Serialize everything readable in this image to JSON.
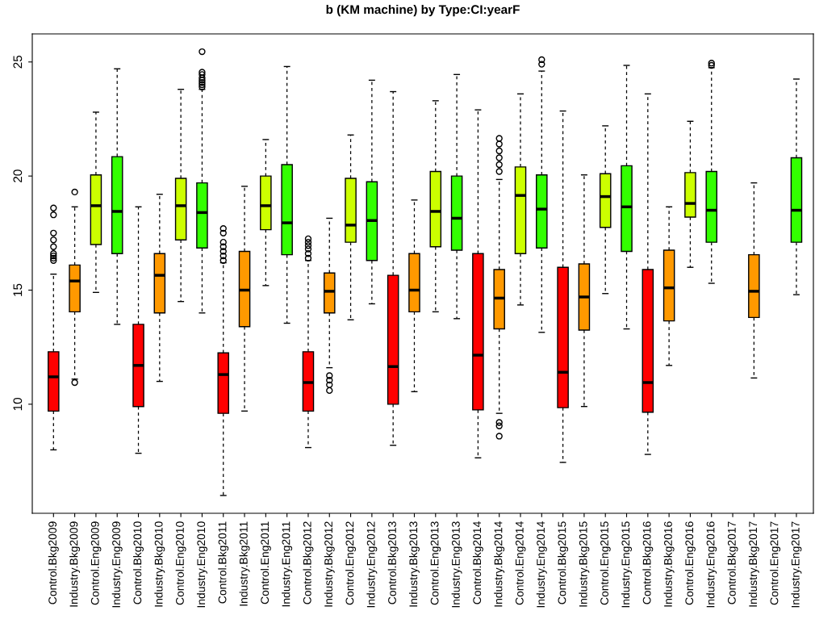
{
  "chart_data": {
    "type": "box",
    "title": "b (KM machine) by Type:CI:yearF",
    "categories": [
      "Control.Bkg2009",
      "Industry.Bkg2009",
      "Control.Eng2009",
      "Industry.Eng2009",
      "Control.Bkg2010",
      "Industry.Bkg2010",
      "Control.Eng2010",
      "Industry.Eng2010",
      "Control.Bkg2011",
      "Industry.Bkg2011",
      "Control.Eng2011",
      "Industry.Eng2011",
      "Control.Bkg2012",
      "Industry.Bkg2012",
      "Control.Eng2012",
      "Industry.Eng2012",
      "Control.Bkg2013",
      "Industry.Bkg2013",
      "Control.Eng2013",
      "Industry.Eng2013",
      "Control.Bkg2014",
      "Industry.Bkg2014",
      "Control.Eng2014",
      "Industry.Eng2014",
      "Control.Bkg2015",
      "Industry.Bkg2015",
      "Control.Eng2015",
      "Industry.Eng2015",
      "Control.Bkg2016",
      "Industry.Bkg2016",
      "Control.Eng2016",
      "Industry.Eng2016",
      "Control.Bkg2017",
      "Industry.Bkg2017",
      "Control.Eng2017",
      "Industry.Eng2017"
    ],
    "colors": [
      "#ff0000",
      "#ff9900",
      "#ccff00",
      "#33ff00",
      "#ff0000",
      "#ff9900",
      "#ccff00",
      "#33ff00",
      "#ff0000",
      "#ff9900",
      "#ccff00",
      "#33ff00",
      "#ff0000",
      "#ff9900",
      "#ccff00",
      "#33ff00",
      "#ff0000",
      "#ff9900",
      "#ccff00",
      "#33ff00",
      "#ff0000",
      "#ff9900",
      "#ccff00",
      "#33ff00",
      "#ff0000",
      "#ff9900",
      "#ccff00",
      "#33ff00",
      "#ff0000",
      "#ff9900",
      "#ccff00",
      "#33ff00",
      null,
      "#ff9900",
      null,
      "#33ff00"
    ],
    "boxes": [
      {
        "low": 8.0,
        "q1": 9.7,
        "median": 11.2,
        "q3": 12.3,
        "high": 15.7,
        "outliers": [
          16.3,
          16.4,
          16.5,
          16.6,
          16.9,
          17.2,
          17.5,
          18.3,
          18.6
        ]
      },
      {
        "low": 11.1,
        "q1": 14.05,
        "median": 15.4,
        "q3": 16.1,
        "high": 18.65,
        "outliers": [
          19.3,
          10.95
        ]
      },
      {
        "low": 14.9,
        "q1": 17.0,
        "median": 18.7,
        "q3": 20.05,
        "high": 22.8
      },
      {
        "low": 13.5,
        "q1": 16.6,
        "median": 18.45,
        "q3": 20.85,
        "high": 24.7
      },
      {
        "low": 7.85,
        "q1": 9.9,
        "median": 11.7,
        "q3": 13.5,
        "high": 18.65
      },
      {
        "low": 11.0,
        "q1": 14.0,
        "median": 15.65,
        "q3": 16.6,
        "high": 19.2
      },
      {
        "low": 14.5,
        "q1": 17.2,
        "median": 18.7,
        "q3": 19.9,
        "high": 23.8
      },
      {
        "low": 14.0,
        "q1": 16.85,
        "median": 18.4,
        "q3": 19.7,
        "high": 23.8,
        "outliers": [
          23.9,
          24.0,
          24.1,
          24.2,
          24.3,
          24.45,
          24.55,
          25.45
        ]
      },
      {
        "low": 6.0,
        "q1": 9.6,
        "median": 11.3,
        "q3": 12.25,
        "high": 16.2,
        "outliers": [
          16.3,
          16.5,
          16.7,
          16.9,
          17.1,
          17.5,
          17.7
        ]
      },
      {
        "low": 9.7,
        "q1": 13.4,
        "median": 15.0,
        "q3": 16.7,
        "high": 19.55
      },
      {
        "low": 15.2,
        "q1": 17.65,
        "median": 18.7,
        "q3": 20.0,
        "high": 21.6
      },
      {
        "low": 13.55,
        "q1": 16.55,
        "median": 17.95,
        "q3": 20.5,
        "high": 24.8
      },
      {
        "low": 8.1,
        "q1": 9.7,
        "median": 10.95,
        "q3": 12.3,
        "high": 16.3,
        "outliers": [
          16.4,
          16.6,
          16.8,
          16.95,
          17.1,
          17.25
        ]
      },
      {
        "low": 11.6,
        "q1": 14.0,
        "median": 14.95,
        "q3": 15.75,
        "high": 18.15,
        "outliers": [
          11.25,
          11.05,
          10.85,
          10.6
        ]
      },
      {
        "low": 13.7,
        "q1": 17.1,
        "median": 17.85,
        "q3": 19.9,
        "high": 21.8
      },
      {
        "low": 14.4,
        "q1": 16.3,
        "median": 18.05,
        "q3": 19.75,
        "high": 24.2
      },
      {
        "low": 8.2,
        "q1": 10.0,
        "median": 11.65,
        "q3": 15.65,
        "high": 23.7
      },
      {
        "low": 10.55,
        "q1": 14.05,
        "median": 15.0,
        "q3": 16.6,
        "high": 18.95
      },
      {
        "low": 14.05,
        "q1": 16.9,
        "median": 18.45,
        "q3": 20.2,
        "high": 23.3
      },
      {
        "low": 13.75,
        "q1": 16.75,
        "median": 18.15,
        "q3": 20.0,
        "high": 24.45
      },
      {
        "low": 7.65,
        "q1": 9.75,
        "median": 12.15,
        "q3": 16.6,
        "high": 22.9
      },
      {
        "low": 9.6,
        "q1": 13.3,
        "median": 14.65,
        "q3": 15.9,
        "high": 19.85,
        "outliers": [
          20.2,
          20.5,
          20.8,
          21.1,
          21.4,
          21.65,
          9.2,
          9.05,
          8.6
        ]
      },
      {
        "low": 14.35,
        "q1": 16.6,
        "median": 19.15,
        "q3": 20.4,
        "high": 23.6
      },
      {
        "low": 13.15,
        "q1": 16.85,
        "median": 18.55,
        "q3": 20.05,
        "high": 24.6,
        "outliers": [
          24.9,
          25.1
        ]
      },
      {
        "low": 7.45,
        "q1": 9.85,
        "median": 11.4,
        "q3": 16.0,
        "high": 22.85
      },
      {
        "low": 9.9,
        "q1": 13.25,
        "median": 14.7,
        "q3": 16.15,
        "high": 20.05
      },
      {
        "low": 14.85,
        "q1": 17.75,
        "median": 19.1,
        "q3": 20.1,
        "high": 22.2
      },
      {
        "low": 13.3,
        "q1": 16.7,
        "median": 18.65,
        "q3": 20.45,
        "high": 24.85
      },
      {
        "low": 7.8,
        "q1": 9.65,
        "median": 10.95,
        "q3": 15.9,
        "high": 23.6
      },
      {
        "low": 11.7,
        "q1": 13.65,
        "median": 15.1,
        "q3": 16.75,
        "high": 18.65
      },
      {
        "low": 16.0,
        "q1": 18.2,
        "median": 18.8,
        "q3": 20.15,
        "high": 22.4
      },
      {
        "low": 15.3,
        "q1": 17.1,
        "median": 18.5,
        "q3": 20.2,
        "high": 24.75,
        "outliers": [
          24.85,
          24.95
        ]
      },
      null,
      {
        "low": 11.15,
        "q1": 13.8,
        "median": 14.95,
        "q3": 16.55,
        "high": 19.7
      },
      null,
      {
        "low": 14.8,
        "q1": 17.1,
        "median": 18.5,
        "q3": 20.8,
        "high": 24.25
      }
    ],
    "ylim": [
      5.22,
      26.23
    ],
    "yticks": [
      10,
      15,
      20,
      25
    ],
    "grid": false,
    "legend": false
  }
}
